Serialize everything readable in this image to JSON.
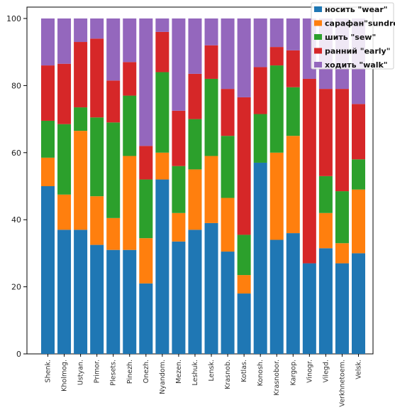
{
  "chart_data": {
    "type": "bar",
    "stacked": true,
    "categories": [
      "Shenk.",
      "Kholmog.",
      "Ustyan.",
      "Primor.",
      "Plesets.",
      "Pinezh.",
      "Onezh.",
      "Nyandom.",
      "Mezen.",
      "Leshuk.",
      "Lensk.",
      "Krasnob.",
      "Kotlas.",
      "Konosh.",
      "Krasnobor.",
      "Kargop.",
      "Vinogr.",
      "Vilegd.",
      "Verkhnetoem.",
      "Velsk."
    ],
    "series": [
      {
        "name": "носить \"wear\"",
        "color": "#1f77b4",
        "values": [
          50,
          37,
          37,
          32.5,
          31,
          31,
          21,
          52,
          33.5,
          37,
          39,
          30.5,
          18,
          57,
          34,
          36,
          27,
          31.5,
          27,
          30
        ]
      },
      {
        "name": "сарафан\"sundress",
        "color": "#ff7f0e",
        "values": [
          8.5,
          10.5,
          29.5,
          14.5,
          9.5,
          28,
          13.5,
          8,
          8.5,
          18,
          20,
          16,
          5.5,
          0,
          26,
          29,
          0,
          10.5,
          6,
          19
        ]
      },
      {
        "name": "шить \"sew\"",
        "color": "#2ca02c",
        "values": [
          11,
          21,
          7,
          23.5,
          28.5,
          18,
          17.5,
          24,
          14,
          15,
          23,
          18.5,
          12,
          14.5,
          26,
          14.5,
          0,
          11,
          15.5,
          9
        ]
      },
      {
        "name": "ранний \"early\"",
        "color": "#d62728",
        "values": [
          16.5,
          18,
          19.5,
          23.5,
          12.5,
          10,
          10,
          12,
          16.5,
          13.5,
          10,
          14,
          41,
          14,
          5.5,
          11,
          55,
          26,
          30.5,
          16.5
        ]
      },
      {
        "name": "ходить \"walk\"",
        "color": "#9467bd",
        "values": [
          14,
          13.5,
          7,
          6,
          18.5,
          13,
          38,
          4,
          27.5,
          16.5,
          8,
          21,
          23.5,
          14.5,
          8.5,
          9.5,
          18,
          21,
          21,
          25.5
        ]
      }
    ],
    "yticks": [
      0,
      20,
      40,
      60,
      80,
      100
    ],
    "ylim": [
      0,
      100
    ],
    "legend": "top-right",
    "grid": false
  }
}
